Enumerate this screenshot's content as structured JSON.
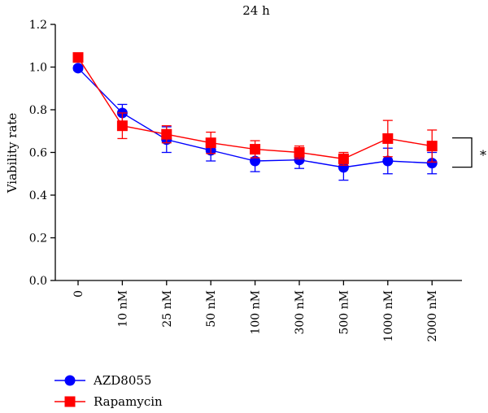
{
  "chart_data": {
    "type": "line",
    "title": "24 h",
    "xlabel": "",
    "ylabel": "Viability rate",
    "ylim": [
      0,
      1.2
    ],
    "yticks": [
      0.0,
      0.2,
      0.4,
      0.6,
      0.8,
      1.0,
      1.2
    ],
    "ytick_labels": [
      "0.0",
      "0.2",
      "0.4",
      "0.6",
      "0.8",
      "1.0",
      "1.2"
    ],
    "categories": [
      "0",
      "10 nM",
      "25 nM",
      "50 nM",
      "100 nM",
      "300 nM",
      "500 nM",
      "1000 nM",
      "2000 nM"
    ],
    "legend_position": "bottom-left",
    "series": [
      {
        "name": "AZD8055",
        "color": "#0000ff",
        "marker": "circle",
        "values": [
          0.995,
          0.785,
          0.66,
          0.61,
          0.56,
          0.565,
          0.53,
          0.56,
          0.55
        ],
        "errors": [
          0.01,
          0.04,
          0.06,
          0.05,
          0.05,
          0.04,
          0.06,
          0.06,
          0.05
        ]
      },
      {
        "name": "Rapamycin",
        "color": "#ff0000",
        "marker": "square",
        "values": [
          1.045,
          0.725,
          0.685,
          0.645,
          0.615,
          0.6,
          0.57,
          0.665,
          0.63
        ],
        "errors": [
          0.02,
          0.06,
          0.04,
          0.05,
          0.04,
          0.03,
          0.03,
          0.085,
          0.075
        ]
      }
    ],
    "annotation": {
      "text": "*"
    }
  }
}
